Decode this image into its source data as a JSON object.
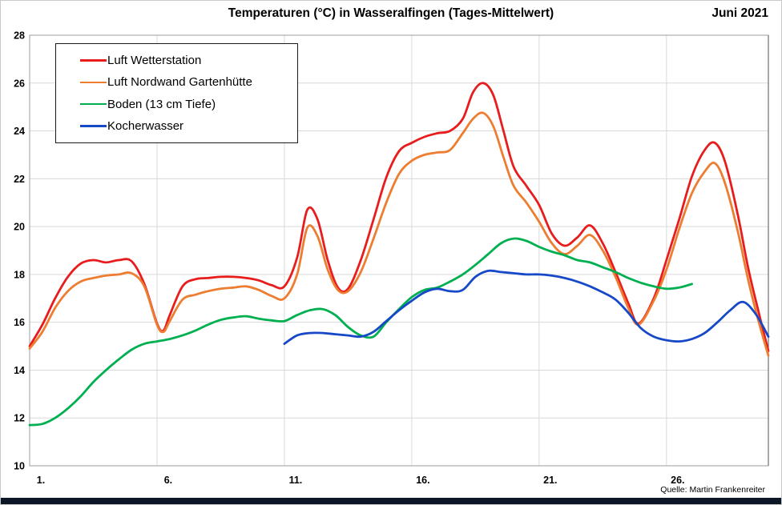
{
  "chart_data": {
    "type": "line",
    "title": "Temperaturen (°C) in Wasseralfingen (Tages-Mittelwert)",
    "period_label": "Juni 2021",
    "source": "Quelle: Martin Frankenreiter",
    "xlabel": "",
    "ylabel": "",
    "grid": true,
    "legend_position": "top-left",
    "x_axis": {
      "min": 1,
      "max": 30,
      "tick_days": [
        1,
        6,
        11,
        16,
        21,
        26
      ],
      "tick_labels": [
        "1.",
        "6.",
        "11.",
        "16.",
        "21.",
        "26."
      ]
    },
    "y_axis": {
      "min": 10,
      "max": 28,
      "step": 2,
      "tick_labels": [
        "10",
        "12",
        "14",
        "16",
        "18",
        "20",
        "22",
        "24",
        "26",
        "28"
      ]
    },
    "theme": {
      "grid_color": "#d9d9d9",
      "frame_color": "#9e9e9e",
      "frame_right_color": "#6e6e6e",
      "footer_bar_color": "#0d1626"
    },
    "series": [
      {
        "name": "Luft Wetterstation",
        "color": "#e81c1c",
        "points": [
          [
            1,
            15.0
          ],
          [
            1.5,
            15.9
          ],
          [
            2,
            17.0
          ],
          [
            2.5,
            17.9
          ],
          [
            3,
            18.45
          ],
          [
            3.5,
            18.6
          ],
          [
            4,
            18.5
          ],
          [
            4.5,
            18.6
          ],
          [
            5,
            18.55
          ],
          [
            5.5,
            17.6
          ],
          [
            6,
            15.95
          ],
          [
            6.25,
            15.65
          ],
          [
            6.5,
            16.3
          ],
          [
            7,
            17.5
          ],
          [
            7.5,
            17.8
          ],
          [
            8,
            17.85
          ],
          [
            8.5,
            17.9
          ],
          [
            9,
            17.9
          ],
          [
            9.5,
            17.85
          ],
          [
            10,
            17.75
          ],
          [
            10.5,
            17.55
          ],
          [
            11,
            17.5
          ],
          [
            11.5,
            18.7
          ],
          [
            11.9,
            20.7
          ],
          [
            12.3,
            20.3
          ],
          [
            12.7,
            18.6
          ],
          [
            13.1,
            17.45
          ],
          [
            13.5,
            17.4
          ],
          [
            14,
            18.6
          ],
          [
            14.5,
            20.3
          ],
          [
            15,
            22.05
          ],
          [
            15.5,
            23.15
          ],
          [
            16,
            23.5
          ],
          [
            16.5,
            23.75
          ],
          [
            17,
            23.9
          ],
          [
            17.5,
            24.0
          ],
          [
            18,
            24.5
          ],
          [
            18.4,
            25.6
          ],
          [
            18.8,
            26.0
          ],
          [
            19.2,
            25.5
          ],
          [
            19.6,
            24.0
          ],
          [
            20,
            22.5
          ],
          [
            20.5,
            21.7
          ],
          [
            21,
            20.9
          ],
          [
            21.5,
            19.7
          ],
          [
            22,
            19.2
          ],
          [
            22.5,
            19.55
          ],
          [
            23,
            20.05
          ],
          [
            23.5,
            19.3
          ],
          [
            24,
            18.1
          ],
          [
            24.5,
            16.8
          ],
          [
            24.9,
            15.95
          ],
          [
            25.5,
            17.0
          ],
          [
            26,
            18.6
          ],
          [
            26.5,
            20.3
          ],
          [
            27,
            22.1
          ],
          [
            27.5,
            23.2
          ],
          [
            27.9,
            23.5
          ],
          [
            28.3,
            22.7
          ],
          [
            28.8,
            20.5
          ],
          [
            29.2,
            18.3
          ],
          [
            29.6,
            16.5
          ],
          [
            30,
            14.8
          ]
        ]
      },
      {
        "name": "Luft Nordwand Gartenhütte",
        "color": "#ed7d31",
        "points": [
          [
            1,
            14.9
          ],
          [
            1.5,
            15.6
          ],
          [
            2,
            16.6
          ],
          [
            2.5,
            17.3
          ],
          [
            3,
            17.7
          ],
          [
            3.5,
            17.85
          ],
          [
            4,
            17.95
          ],
          [
            4.5,
            18.0
          ],
          [
            5,
            18.05
          ],
          [
            5.5,
            17.5
          ],
          [
            6,
            15.9
          ],
          [
            6.25,
            15.6
          ],
          [
            6.5,
            16.05
          ],
          [
            7,
            16.95
          ],
          [
            7.5,
            17.15
          ],
          [
            8,
            17.3
          ],
          [
            8.5,
            17.4
          ],
          [
            9,
            17.45
          ],
          [
            9.5,
            17.5
          ],
          [
            10,
            17.35
          ],
          [
            10.5,
            17.1
          ],
          [
            11,
            17.0
          ],
          [
            11.5,
            18.0
          ],
          [
            11.9,
            19.95
          ],
          [
            12.3,
            19.6
          ],
          [
            12.7,
            18.2
          ],
          [
            13.1,
            17.35
          ],
          [
            13.5,
            17.3
          ],
          [
            14,
            18.1
          ],
          [
            14.5,
            19.5
          ],
          [
            15,
            21.0
          ],
          [
            15.5,
            22.2
          ],
          [
            16,
            22.75
          ],
          [
            16.5,
            23.0
          ],
          [
            17,
            23.1
          ],
          [
            17.5,
            23.2
          ],
          [
            18,
            23.9
          ],
          [
            18.4,
            24.5
          ],
          [
            18.8,
            24.75
          ],
          [
            19.2,
            24.2
          ],
          [
            19.6,
            22.9
          ],
          [
            20,
            21.7
          ],
          [
            20.5,
            21.0
          ],
          [
            21,
            20.2
          ],
          [
            21.5,
            19.3
          ],
          [
            22,
            18.85
          ],
          [
            22.5,
            19.2
          ],
          [
            23,
            19.65
          ],
          [
            23.5,
            19.0
          ],
          [
            24,
            17.9
          ],
          [
            24.5,
            16.6
          ],
          [
            24.9,
            15.9
          ],
          [
            25.5,
            16.9
          ],
          [
            26,
            18.2
          ],
          [
            26.5,
            19.9
          ],
          [
            27,
            21.4
          ],
          [
            27.5,
            22.3
          ],
          [
            27.9,
            22.65
          ],
          [
            28.3,
            21.8
          ],
          [
            28.8,
            19.8
          ],
          [
            29.2,
            17.8
          ],
          [
            29.6,
            16.1
          ],
          [
            30,
            14.6
          ]
        ]
      },
      {
        "name": "Boden (13 cm Tiefe)",
        "color": "#00b050",
        "points": [
          [
            1,
            11.7
          ],
          [
            1.5,
            11.75
          ],
          [
            2,
            12.0
          ],
          [
            2.5,
            12.4
          ],
          [
            3,
            12.9
          ],
          [
            3.5,
            13.5
          ],
          [
            4,
            14.0
          ],
          [
            4.5,
            14.45
          ],
          [
            5,
            14.85
          ],
          [
            5.5,
            15.1
          ],
          [
            6,
            15.2
          ],
          [
            6.5,
            15.3
          ],
          [
            7,
            15.45
          ],
          [
            7.5,
            15.65
          ],
          [
            8,
            15.9
          ],
          [
            8.5,
            16.1
          ],
          [
            9,
            16.2
          ],
          [
            9.5,
            16.25
          ],
          [
            10,
            16.15
          ],
          [
            10.5,
            16.08
          ],
          [
            11,
            16.05
          ],
          [
            11.5,
            16.3
          ],
          [
            12,
            16.5
          ],
          [
            12.5,
            16.55
          ],
          [
            13,
            16.3
          ],
          [
            13.5,
            15.8
          ],
          [
            14,
            15.45
          ],
          [
            14.5,
            15.4
          ],
          [
            15,
            16.0
          ],
          [
            15.5,
            16.55
          ],
          [
            16,
            17.05
          ],
          [
            16.5,
            17.35
          ],
          [
            17,
            17.45
          ],
          [
            17.5,
            17.7
          ],
          [
            18,
            18.0
          ],
          [
            18.5,
            18.4
          ],
          [
            19,
            18.85
          ],
          [
            19.5,
            19.3
          ],
          [
            20,
            19.5
          ],
          [
            20.5,
            19.4
          ],
          [
            21,
            19.15
          ],
          [
            21.5,
            18.95
          ],
          [
            22,
            18.8
          ],
          [
            22.5,
            18.6
          ],
          [
            23,
            18.5
          ],
          [
            23.5,
            18.3
          ],
          [
            24,
            18.1
          ],
          [
            24.5,
            17.85
          ],
          [
            25,
            17.65
          ],
          [
            25.5,
            17.5
          ],
          [
            26,
            17.4
          ],
          [
            26.5,
            17.45
          ],
          [
            27,
            17.6
          ]
        ]
      },
      {
        "name": "Kocherwasser",
        "color": "#1648c8",
        "points": [
          [
            11,
            15.1
          ],
          [
            11.5,
            15.45
          ],
          [
            12,
            15.55
          ],
          [
            12.5,
            15.55
          ],
          [
            13,
            15.5
          ],
          [
            13.5,
            15.45
          ],
          [
            14,
            15.4
          ],
          [
            14.5,
            15.6
          ],
          [
            15,
            16.05
          ],
          [
            15.5,
            16.5
          ],
          [
            16,
            16.9
          ],
          [
            16.5,
            17.25
          ],
          [
            17,
            17.4
          ],
          [
            17.5,
            17.3
          ],
          [
            18,
            17.35
          ],
          [
            18.5,
            17.9
          ],
          [
            19,
            18.15
          ],
          [
            19.5,
            18.1
          ],
          [
            20,
            18.05
          ],
          [
            20.5,
            18.0
          ],
          [
            21,
            18.0
          ],
          [
            21.5,
            17.95
          ],
          [
            22,
            17.85
          ],
          [
            22.5,
            17.7
          ],
          [
            23,
            17.5
          ],
          [
            23.5,
            17.25
          ],
          [
            24,
            16.95
          ],
          [
            24.5,
            16.4
          ],
          [
            25,
            15.75
          ],
          [
            25.5,
            15.4
          ],
          [
            26,
            15.25
          ],
          [
            26.5,
            15.2
          ],
          [
            27,
            15.3
          ],
          [
            27.5,
            15.55
          ],
          [
            28,
            16.0
          ],
          [
            28.5,
            16.5
          ],
          [
            29,
            16.85
          ],
          [
            29.5,
            16.35
          ],
          [
            30,
            15.4
          ]
        ]
      }
    ]
  }
}
